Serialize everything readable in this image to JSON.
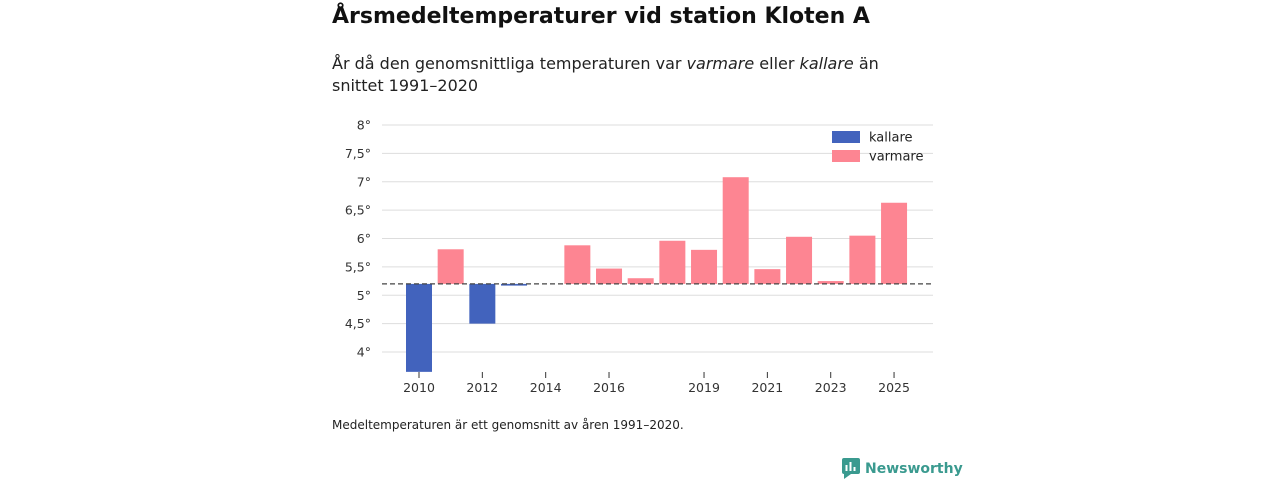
{
  "header": {
    "title": "Årsmedeltemperaturer vid station Kloten A",
    "subtitle_part1": "År då den genomsnittliga temperaturen var ",
    "subtitle_em1": "varmare",
    "subtitle_part2": " eller ",
    "subtitle_em2": "kallare",
    "subtitle_part3": " än snittet 1991–2020"
  },
  "footnote": "Medeltemperaturen är ett genomsnitt av åren 1991–2020.",
  "brand": {
    "name": "Newsworthy",
    "icon": "newsworthy-logo-icon",
    "color": "#3a9a8f"
  },
  "colors": {
    "kallare": "#4263bd",
    "varmare": "#fd8592",
    "grid": "#dddddd",
    "baseline": "#444444"
  },
  "chart_data": {
    "type": "bar",
    "baseline": 5.2,
    "ylim": [
      3.65,
      8
    ],
    "yticks": [
      4,
      4.5,
      5,
      5.5,
      6,
      6.5,
      7,
      7.5,
      8
    ],
    "ytick_labels": [
      "4°",
      "4,5°",
      "5°",
      "5,5°",
      "6°",
      "6,5°",
      "7°",
      "7,5°",
      "8°"
    ],
    "xticks": [
      2010,
      2012,
      2014,
      2016,
      2019,
      2021,
      2023,
      2025
    ],
    "legend": [
      {
        "key": "kallare",
        "label": "kallare"
      },
      {
        "key": "varmare",
        "label": "varmare"
      }
    ],
    "legend_position": "top-right",
    "x": [
      2010,
      2011,
      2012,
      2013,
      2014,
      2015,
      2016,
      2017,
      2018,
      2019,
      2020,
      2021,
      2022,
      2023,
      2024,
      2025
    ],
    "values": [
      3.65,
      5.81,
      4.5,
      5.17,
      null,
      5.88,
      5.47,
      5.3,
      5.96,
      5.8,
      7.08,
      5.46,
      6.03,
      5.25,
      6.05,
      6.63
    ]
  }
}
